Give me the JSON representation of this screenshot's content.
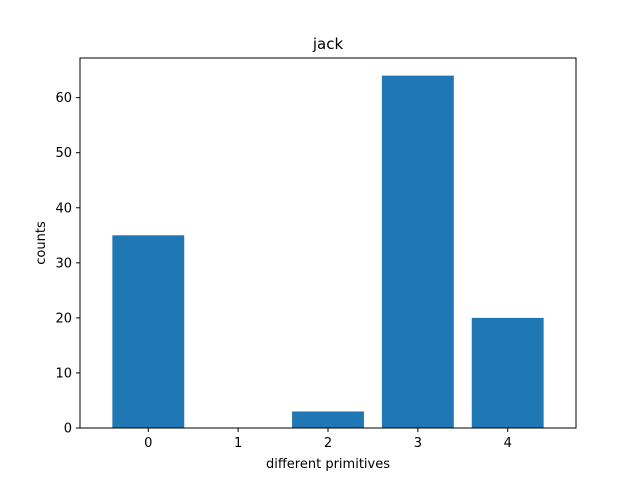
{
  "chart_data": {
    "type": "bar",
    "title": "jack",
    "xlabel": "different primitives",
    "ylabel": "counts",
    "categories": [
      "0",
      "1",
      "2",
      "3",
      "4"
    ],
    "values": [
      35,
      0,
      3,
      64,
      20
    ],
    "ylim": [
      0,
      67.2
    ],
    "yticks": [
      "0",
      "10",
      "20",
      "30",
      "40",
      "50",
      "60"
    ],
    "grid": false,
    "legend": "none",
    "bar_color": "#1f77b4"
  }
}
